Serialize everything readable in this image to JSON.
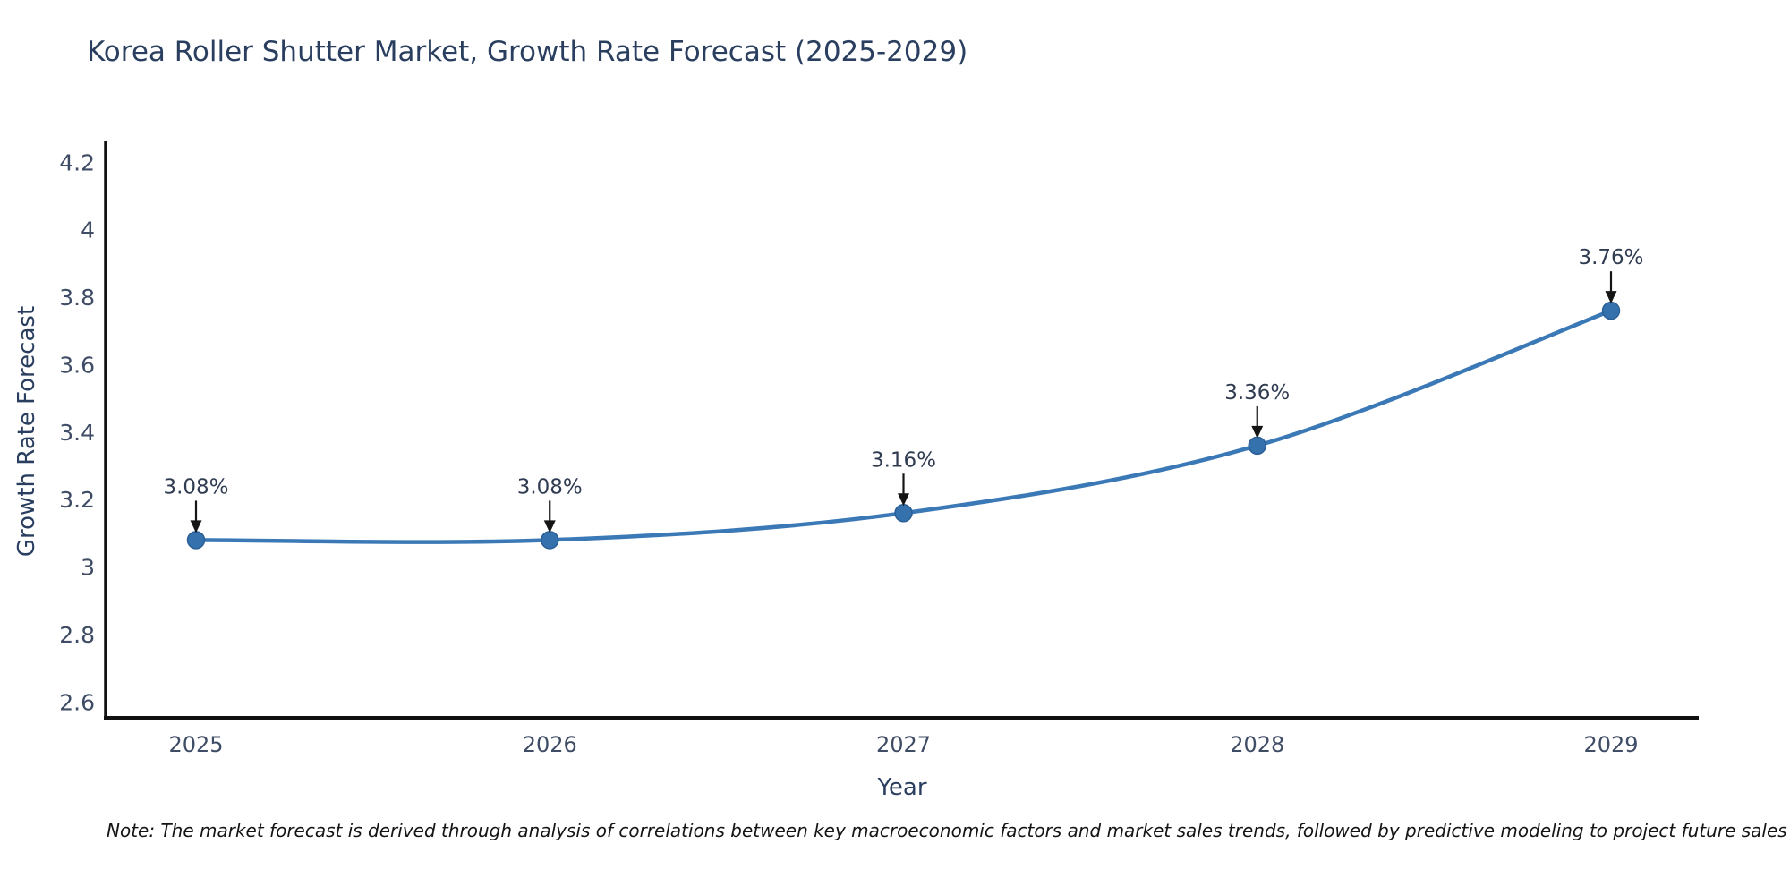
{
  "chart_data": {
    "type": "line",
    "title": "Korea Roller Shutter Market, Growth Rate Forecast (2025-2029)",
    "xlabel": "Year",
    "ylabel": "Growth Rate Forecast",
    "categories": [
      "2025",
      "2026",
      "2027",
      "2028",
      "2029"
    ],
    "values": [
      3.08,
      3.08,
      3.16,
      3.36,
      3.76
    ],
    "point_labels": [
      "3.08%",
      "3.08%",
      "3.16%",
      "3.36%",
      "3.76%"
    ],
    "y_ticks": [
      2.6,
      2.8,
      3.0,
      3.2,
      3.4,
      3.6,
      3.8,
      4.0,
      4.2
    ],
    "y_tick_labels": [
      "2.6",
      "2.8",
      "3",
      "3.2",
      "3.4",
      "3.6",
      "3.8",
      "4",
      "4.2"
    ],
    "y_range": [
      2.553,
      4.262
    ],
    "line_shape": "spline",
    "grid": false,
    "legend_position": "none",
    "colors": {
      "line": "#3a78b6",
      "marker_fill": "#3471ad",
      "marker_stroke": "#2c5f95",
      "axis_line": "#111111",
      "tick_text": "#3f4c66",
      "axis_title_text": "#2a3f5f",
      "title_text": "#2a3f5f",
      "annotation_text": "#2f3b50",
      "annotation_arrow": "#151515",
      "background": "#ffffff"
    }
  },
  "note": "Note: The market forecast is derived through analysis of correlations between key macroeconomic factors and market sales trends, followed by predictive modeling to project future sales"
}
